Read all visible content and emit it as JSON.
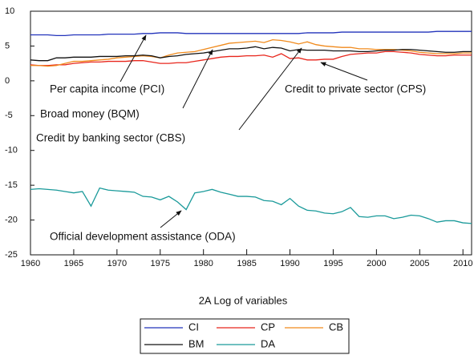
{
  "chart_data": {
    "type": "line",
    "caption": "2A Log of variables",
    "x": [
      1960,
      1961,
      1962,
      1963,
      1964,
      1965,
      1966,
      1967,
      1968,
      1969,
      1970,
      1971,
      1972,
      1973,
      1974,
      1975,
      1976,
      1977,
      1978,
      1979,
      1980,
      1981,
      1982,
      1983,
      1984,
      1985,
      1986,
      1987,
      1988,
      1989,
      1990,
      1991,
      1992,
      1993,
      1994,
      1995,
      1996,
      1997,
      1998,
      1999,
      2000,
      2001,
      2002,
      2003,
      2004,
      2005,
      2006,
      2007,
      2008,
      2009,
      2010,
      2011
    ],
    "xlim": [
      1960,
      2011
    ],
    "xticks": [
      1960,
      1965,
      1970,
      1975,
      1980,
      1985,
      1990,
      1995,
      2000,
      2005,
      2010
    ],
    "ylim": [
      -25,
      10
    ],
    "yticks": [
      -25,
      -20,
      -15,
      -10,
      -5,
      0,
      5,
      10
    ],
    "series": [
      {
        "name": "CI",
        "color": "#2233bb",
        "values": [
          6.6,
          6.6,
          6.6,
          6.5,
          6.5,
          6.6,
          6.6,
          6.6,
          6.6,
          6.7,
          6.7,
          6.7,
          6.7,
          6.8,
          6.8,
          6.9,
          6.9,
          6.9,
          6.8,
          6.8,
          6.8,
          6.8,
          6.8,
          6.8,
          6.8,
          6.8,
          6.8,
          6.8,
          6.8,
          6.8,
          6.8,
          6.8,
          6.9,
          6.9,
          6.9,
          6.9,
          7.0,
          7.0,
          7.0,
          7.0,
          7.0,
          7.0,
          7.0,
          7.0,
          7.0,
          7.0,
          7.0,
          7.1,
          7.1,
          7.1,
          7.1,
          7.1
        ]
      },
      {
        "name": "CP",
        "color": "#e8261c",
        "values": [
          2.3,
          2.2,
          2.2,
          2.3,
          2.3,
          2.5,
          2.6,
          2.7,
          2.7,
          2.8,
          2.8,
          2.8,
          2.9,
          2.9,
          2.7,
          2.5,
          2.5,
          2.6,
          2.6,
          2.8,
          3.0,
          3.2,
          3.4,
          3.5,
          3.5,
          3.6,
          3.6,
          3.7,
          3.4,
          3.9,
          3.2,
          3.3,
          3.0,
          3.0,
          3.1,
          3.1,
          3.5,
          3.8,
          3.9,
          4.0,
          4.0,
          4.2,
          4.2,
          4.1,
          4.0,
          3.8,
          3.7,
          3.6,
          3.6,
          3.7,
          3.7,
          3.7
        ]
      },
      {
        "name": "CB",
        "color": "#f08a1c",
        "values": [
          2.2,
          2.2,
          2.1,
          2.2,
          2.5,
          2.8,
          2.8,
          2.9,
          3.0,
          3.1,
          3.3,
          3.4,
          3.5,
          3.6,
          3.5,
          3.3,
          3.7,
          4.0,
          4.1,
          4.2,
          4.5,
          4.8,
          5.1,
          5.4,
          5.5,
          5.6,
          5.7,
          5.5,
          5.9,
          5.8,
          5.6,
          5.3,
          5.6,
          5.2,
          5.0,
          4.9,
          4.8,
          4.8,
          4.6,
          4.6,
          4.5,
          4.5,
          4.5,
          4.4,
          4.3,
          4.1,
          4.0,
          3.9,
          3.9,
          3.9,
          4.0,
          4.0
        ]
      },
      {
        "name": "BM",
        "color": "#111111",
        "values": [
          3.0,
          2.9,
          2.9,
          3.3,
          3.3,
          3.4,
          3.4,
          3.4,
          3.5,
          3.5,
          3.5,
          3.6,
          3.6,
          3.7,
          3.6,
          3.3,
          3.5,
          3.6,
          3.8,
          3.9,
          4.0,
          4.2,
          4.4,
          4.6,
          4.6,
          4.7,
          4.9,
          4.6,
          4.8,
          4.7,
          4.3,
          4.5,
          4.4,
          4.4,
          4.4,
          4.3,
          4.3,
          4.3,
          4.2,
          4.2,
          4.3,
          4.4,
          4.4,
          4.5,
          4.5,
          4.4,
          4.3,
          4.2,
          4.1,
          4.1,
          4.2,
          4.2
        ]
      },
      {
        "name": "DA",
        "color": "#1a9a9a",
        "values": [
          -15.6,
          -15.5,
          -15.6,
          -15.7,
          -15.9,
          -16.1,
          -15.9,
          -18.0,
          -15.4,
          -15.7,
          -15.8,
          -15.9,
          -16.0,
          -16.6,
          -16.7,
          -17.1,
          -16.6,
          -17.4,
          -18.5,
          -16.1,
          -15.9,
          -15.6,
          -16.0,
          -16.3,
          -16.6,
          -16.6,
          -16.7,
          -17.2,
          -17.3,
          -17.8,
          -16.9,
          -18.0,
          -18.6,
          -18.7,
          -19.0,
          -19.1,
          -18.8,
          -18.2,
          -19.5,
          -19.6,
          -19.4,
          -19.4,
          -19.8,
          -19.6,
          -19.3,
          -19.4,
          -19.8,
          -20.3,
          -20.1,
          -20.1,
          -20.4,
          -20.5
        ]
      }
    ],
    "annotations": [
      "Per capita income (PCI)",
      "Broad money (BQM)",
      "Credit by banking sector (CBS)",
      "Credit to private sector (CPS)",
      "Official development assistance (ODA)"
    ]
  }
}
